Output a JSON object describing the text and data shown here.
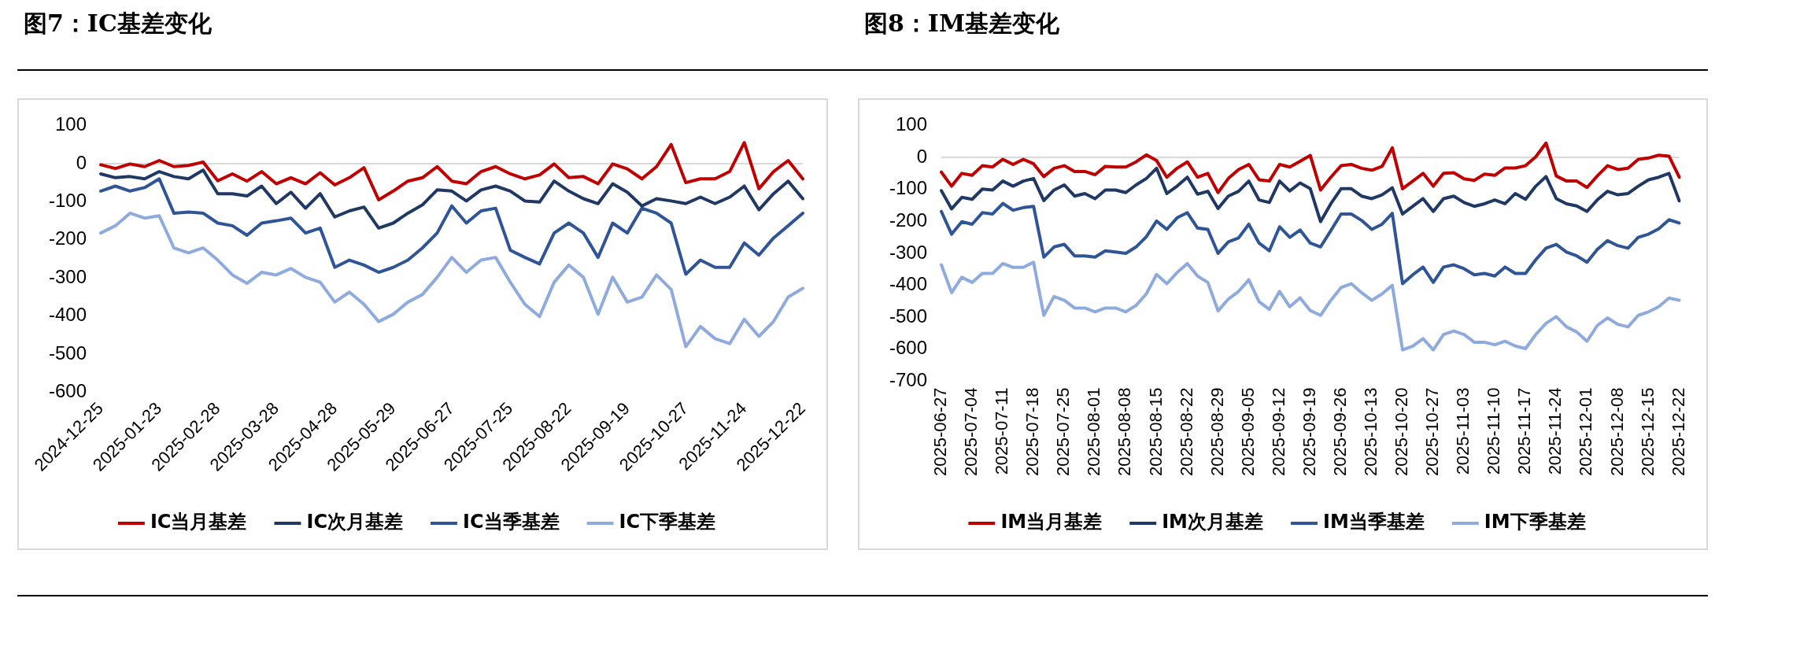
{
  "chart_data": [
    {
      "type": "line",
      "title": "图7：IC基差变化",
      "categories": [
        "2024-12-25",
        null,
        null,
        null,
        "2025-01-23",
        null,
        null,
        null,
        "2025-02-28",
        null,
        null,
        null,
        "2025-03-28",
        null,
        null,
        null,
        "2025-04-28",
        null,
        null,
        null,
        "2025-05-29",
        null,
        null,
        null,
        "2025-06-27",
        null,
        null,
        null,
        "2025-07-25",
        null,
        null,
        null,
        "2025-08-22",
        null,
        null,
        null,
        "2025-09-19",
        null,
        null,
        null,
        "2025-10-27",
        null,
        null,
        null,
        "2025-11-24",
        null,
        null,
        null,
        "2025-12-22"
      ],
      "series": [
        {
          "name": "IC当月基差",
          "color": "#c00000",
          "values": [
            -3,
            -13,
            -1,
            -8,
            8,
            -8,
            -5,
            4,
            -45,
            -27,
            -46,
            -21,
            -53,
            -37,
            -53,
            -24,
            -56,
            -37,
            -11,
            -95,
            -72,
            -46,
            -37,
            -8,
            -46,
            -53,
            -21,
            -8,
            -27,
            -40,
            -30,
            -1,
            -37,
            -34,
            -53,
            -1,
            -14,
            -40,
            -8,
            50,
            -50,
            -40,
            -40,
            -21,
            55,
            -66,
            -21,
            8,
            -40
          ]
        },
        {
          "name": "IC次月基差",
          "color": "#203864",
          "values": [
            -27,
            -37,
            -34,
            -40,
            -21,
            -34,
            -40,
            -17,
            -79,
            -79,
            -85,
            -59,
            -105,
            -75,
            -117,
            -79,
            -140,
            -124,
            -114,
            -169,
            -156,
            -130,
            -108,
            -69,
            -72,
            -98,
            -69,
            -59,
            -72,
            -98,
            -101,
            -46,
            -72,
            -92,
            -105,
            -53,
            -75,
            -111,
            -92,
            -98,
            -105,
            -88,
            -105,
            -88,
            -59,
            -121,
            -79,
            -46,
            -92
          ]
        },
        {
          "name": "IC当季基差",
          "color": "#2f5597",
          "values": [
            -72,
            -59,
            -72,
            -63,
            -40,
            -130,
            -127,
            -130,
            -156,
            -163,
            -188,
            -156,
            -150,
            -143,
            -182,
            -169,
            -272,
            -253,
            -266,
            -285,
            -272,
            -253,
            -221,
            -182,
            -111,
            -156,
            -124,
            -117,
            -227,
            -246,
            -263,
            -182,
            -156,
            -182,
            -246,
            -156,
            -182,
            -117,
            -130,
            -156,
            -290,
            -253,
            -272,
            -272,
            -208,
            -240,
            -195,
            -163,
            -130
          ]
        },
        {
          "name": "IC下季基差",
          "color": "#8faadc",
          "values": [
            -182,
            -163,
            -130,
            -143,
            -137,
            -221,
            -234,
            -221,
            -253,
            -292,
            -314,
            -285,
            -292,
            -275,
            -298,
            -311,
            -363,
            -337,
            -369,
            -414,
            -395,
            -363,
            -343,
            -298,
            -246,
            -285,
            -253,
            -246,
            -311,
            -369,
            -401,
            -311,
            -266,
            -298,
            -395,
            -298,
            -363,
            -350,
            -292,
            -330,
            -480,
            -427,
            -459,
            -472,
            -408,
            -453,
            -414,
            -350,
            -327
          ]
        }
      ],
      "ylim": [
        -600,
        100
      ],
      "yticks": [
        -600,
        -500,
        -400,
        -300,
        -200,
        -100,
        0,
        100
      ],
      "ref_lines": [
        {
          "axis": "y",
          "value": 0,
          "color": "#d9d9d9"
        }
      ],
      "grid": false,
      "legend": "bottom"
    },
    {
      "type": "line",
      "title": "图8：IM基差变化",
      "categories": [
        "2025-06-27",
        null,
        null,
        "2025-07-04",
        null,
        null,
        "2025-07-11",
        null,
        null,
        "2025-07-18",
        null,
        null,
        "2025-07-25",
        null,
        null,
        "2025-08-01",
        null,
        null,
        "2025-08-08",
        null,
        null,
        "2025-08-15",
        null,
        null,
        "2025-08-22",
        null,
        null,
        "2025-08-29",
        null,
        null,
        "2025-09-05",
        null,
        null,
        "2025-09-12",
        null,
        null,
        "2025-09-19",
        null,
        null,
        "2025-09-26",
        null,
        null,
        "2025-10-13",
        null,
        null,
        "2025-10-20",
        null,
        null,
        "2025-10-27",
        null,
        null,
        "2025-11-03",
        null,
        null,
        "2025-11-10",
        null,
        null,
        "2025-11-17",
        null,
        null,
        "2025-11-24",
        null,
        null,
        "2025-12-01",
        null,
        null,
        "2025-12-08",
        null,
        null,
        "2025-12-15",
        null,
        null,
        "2025-12-22"
      ],
      "series": [
        {
          "name": "IM当月基差",
          "color": "#c00000",
          "values": [
            -46,
            -90,
            -50,
            -56,
            -26,
            -30,
            -6,
            -22,
            -6,
            -20,
            -60,
            -34,
            -26,
            -44,
            -44,
            -54,
            -28,
            -30,
            -30,
            -14,
            8,
            -10,
            -62,
            -34,
            -14,
            -62,
            -50,
            -110,
            -66,
            -38,
            -22,
            -70,
            -74,
            -22,
            -30,
            -12,
            6,
            -102,
            -62,
            -26,
            -22,
            -34,
            -40,
            -28,
            30,
            -98,
            -74,
            -50,
            -90,
            -50,
            -48,
            -67,
            -72,
            -52,
            -56,
            -33,
            -33,
            -26,
            2,
            45,
            -58,
            -74,
            -74,
            -94,
            -58,
            -26,
            -38,
            -34,
            -6,
            -2,
            7,
            4,
            -62
          ]
        },
        {
          "name": "IM次月基差",
          "color": "#203864",
          "values": [
            -104,
            -161,
            -125,
            -131,
            -99,
            -102,
            -74,
            -90,
            -74,
            -66,
            -135,
            -102,
            -86,
            -121,
            -113,
            -129,
            -102,
            -102,
            -110,
            -86,
            -66,
            -34,
            -113,
            -90,
            -62,
            -115,
            -106,
            -160,
            -121,
            -106,
            -74,
            -133,
            -141,
            -74,
            -105,
            -80,
            -98,
            -201,
            -145,
            -98,
            -98,
            -121,
            -129,
            -117,
            -95,
            -177,
            -153,
            -129,
            -169,
            -129,
            -121,
            -141,
            -153,
            -145,
            -133,
            -145,
            -113,
            -131,
            -90,
            -60,
            -129,
            -145,
            -152,
            -169,
            -133,
            -106,
            -117,
            -113,
            -90,
            -70,
            -62,
            -50,
            -136
          ]
        },
        {
          "name": "IM当季基差",
          "color": "#2f5597",
          "values": [
            -169,
            -240,
            -201,
            -209,
            -173,
            -177,
            -144,
            -165,
            -157,
            -153,
            -312,
            -280,
            -272,
            -308,
            -308,
            -312,
            -292,
            -296,
            -300,
            -280,
            -248,
            -199,
            -225,
            -189,
            -173,
            -221,
            -225,
            -300,
            -264,
            -252,
            -209,
            -268,
            -292,
            -217,
            -250,
            -227,
            -268,
            -280,
            -229,
            -177,
            -177,
            -197,
            -225,
            -209,
            -175,
            -395,
            -367,
            -343,
            -391,
            -343,
            -336,
            -348,
            -367,
            -363,
            -371,
            -343,
            -363,
            -363,
            -320,
            -284,
            -272,
            -296,
            -308,
            -328,
            -288,
            -260,
            -276,
            -284,
            -250,
            -240,
            -223,
            -195,
            -205
          ]
        },
        {
          "name": "IM下季基差",
          "color": "#8faadc",
          "values": [
            -336,
            -423,
            -375,
            -391,
            -363,
            -363,
            -332,
            -344,
            -344,
            -328,
            -494,
            -435,
            -447,
            -471,
            -471,
            -483,
            -471,
            -471,
            -483,
            -463,
            -427,
            -366,
            -395,
            -360,
            -332,
            -371,
            -391,
            -480,
            -443,
            -419,
            -383,
            -451,
            -475,
            -419,
            -467,
            -439,
            -479,
            -494,
            -447,
            -407,
            -395,
            -423,
            -447,
            -427,
            -400,
            -602,
            -590,
            -567,
            -602,
            -554,
            -543,
            -554,
            -578,
            -578,
            -586,
            -575,
            -590,
            -598,
            -554,
            -519,
            -498,
            -530,
            -546,
            -575,
            -526,
            -502,
            -522,
            -530,
            -494,
            -483,
            -467,
            -440,
            -447
          ]
        }
      ],
      "ylim": [
        -700,
        100
      ],
      "yticks": [
        -700,
        -600,
        -500,
        -400,
        -300,
        -200,
        -100,
        0,
        100
      ],
      "ref_lines": [
        {
          "axis": "y",
          "value": 0,
          "color": "#d9d9d9"
        }
      ],
      "grid": false,
      "legend": "bottom"
    }
  ]
}
